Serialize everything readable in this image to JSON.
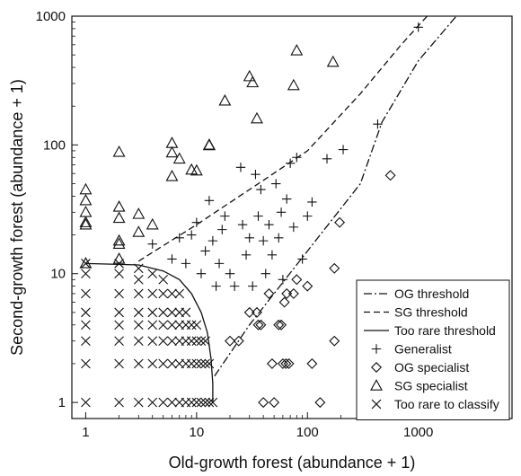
{
  "chart_data": {
    "type": "scatter",
    "xlabel": "Old-growth forest (abundance + 1)",
    "ylabel": "Second-growth forest (abundance + 1)",
    "xscale": "log",
    "yscale": "log",
    "xlim": [
      0.75,
      7000
    ],
    "ylim": [
      0.75,
      1000
    ],
    "xticks": [
      1,
      10,
      100,
      1000
    ],
    "xtick_labels": [
      "1",
      "10",
      "100",
      "1000"
    ],
    "yticks": [
      1,
      10,
      100,
      1000
    ],
    "ytick_labels": [
      "1",
      "10",
      "100",
      "1000"
    ],
    "grid": false,
    "legend_position": "bottom-right",
    "legend": [
      {
        "label": "OG threshold",
        "kind": "line",
        "style": "dash-dot"
      },
      {
        "label": "SG threshold",
        "kind": "line",
        "style": "dashed"
      },
      {
        "label": "Too rare threshold",
        "kind": "line",
        "style": "solid"
      },
      {
        "label": "Generalist",
        "kind": "marker",
        "marker": "plus"
      },
      {
        "label": "OG specialist",
        "kind": "marker",
        "marker": "diamond"
      },
      {
        "label": "SG specialist",
        "kind": "marker",
        "marker": "triangle"
      },
      {
        "label": "Too rare to classify",
        "kind": "marker",
        "marker": "cross"
      }
    ],
    "lines": [
      {
        "name": "OG threshold",
        "style": "dash-dot",
        "points": [
          [
            14.5,
            1.6
          ],
          [
            30,
            4
          ],
          [
            100,
            15
          ],
          [
            300,
            50
          ],
          [
            470,
            150
          ],
          [
            1000,
            450
          ],
          [
            2200,
            1000
          ]
        ]
      },
      {
        "name": "SG threshold",
        "style": "dashed",
        "points": [
          [
            3,
            12.5
          ],
          [
            10,
            24
          ],
          [
            30,
            45
          ],
          [
            100,
            90
          ],
          [
            300,
            250
          ],
          [
            700,
            600
          ],
          [
            1200,
            1000
          ]
        ]
      },
      {
        "name": "Too rare threshold",
        "style": "solid",
        "points": [
          [
            1,
            12
          ],
          [
            3,
            11.7
          ],
          [
            5,
            10.5
          ],
          [
            7,
            9
          ],
          [
            9,
            7
          ],
          [
            11,
            5
          ],
          [
            12.5,
            3.5
          ],
          [
            13.5,
            2.2
          ],
          [
            14,
            1.4
          ],
          [
            14,
            1
          ]
        ]
      }
    ],
    "series": [
      {
        "name": "SG specialist",
        "marker": "triangle",
        "points": [
          [
            1,
            45
          ],
          [
            1,
            37
          ],
          [
            1,
            30
          ],
          [
            1,
            25
          ],
          [
            1,
            24
          ],
          [
            1,
            12
          ],
          [
            2,
            88
          ],
          [
            2,
            33
          ],
          [
            2,
            27
          ],
          [
            2,
            18
          ],
          [
            2,
            17
          ],
          [
            2,
            13
          ],
          [
            3,
            29
          ],
          [
            3,
            21
          ],
          [
            4,
            24
          ],
          [
            6,
            103
          ],
          [
            6,
            87
          ],
          [
            6,
            57
          ],
          [
            7,
            78
          ],
          [
            9,
            64
          ],
          [
            10,
            63
          ],
          [
            13,
            100
          ],
          [
            13,
            99
          ],
          [
            18,
            220
          ],
          [
            30,
            340
          ],
          [
            32,
            305
          ],
          [
            35,
            160
          ],
          [
            75,
            290
          ],
          [
            80,
            540
          ],
          [
            170,
            440
          ]
        ]
      },
      {
        "name": "Generalist",
        "marker": "plus",
        "points": [
          [
            4,
            17
          ],
          [
            6,
            13
          ],
          [
            7,
            19
          ],
          [
            8,
            12
          ],
          [
            9,
            20
          ],
          [
            10,
            25
          ],
          [
            11,
            10
          ],
          [
            12,
            15
          ],
          [
            13,
            37
          ],
          [
            14,
            18
          ],
          [
            15,
            8
          ],
          [
            16,
            12
          ],
          [
            17,
            22
          ],
          [
            18,
            28
          ],
          [
            20,
            10
          ],
          [
            22,
            8
          ],
          [
            25,
            67
          ],
          [
            26,
            24
          ],
          [
            28,
            14
          ],
          [
            30,
            19
          ],
          [
            32,
            8
          ],
          [
            34,
            59
          ],
          [
            36,
            28
          ],
          [
            38,
            45
          ],
          [
            40,
            18
          ],
          [
            42,
            10
          ],
          [
            45,
            24
          ],
          [
            48,
            14
          ],
          [
            52,
            50
          ],
          [
            55,
            19
          ],
          [
            58,
            30
          ],
          [
            60,
            9
          ],
          [
            65,
            38
          ],
          [
            70,
            72
          ],
          [
            75,
            23
          ],
          [
            80,
            80
          ],
          [
            90,
            13
          ],
          [
            100,
            28
          ],
          [
            110,
            36
          ],
          [
            150,
            78
          ],
          [
            210,
            92
          ],
          [
            430,
            145
          ],
          [
            1000,
            820
          ]
        ]
      },
      {
        "name": "OG specialist",
        "marker": "diamond",
        "points": [
          [
            20,
            3
          ],
          [
            24,
            3
          ],
          [
            30,
            5
          ],
          [
            35,
            5
          ],
          [
            36,
            4
          ],
          [
            38,
            4
          ],
          [
            40,
            1
          ],
          [
            45,
            7
          ],
          [
            48,
            2
          ],
          [
            50,
            1
          ],
          [
            55,
            4
          ],
          [
            58,
            4
          ],
          [
            60,
            2
          ],
          [
            62,
            6
          ],
          [
            64,
            2
          ],
          [
            65,
            7
          ],
          [
            68,
            2
          ],
          [
            75,
            7
          ],
          [
            80,
            9
          ],
          [
            100,
            8
          ],
          [
            110,
            2
          ],
          [
            130,
            1
          ],
          [
            175,
            3
          ],
          [
            175,
            11
          ],
          [
            195,
            25
          ],
          [
            560,
            58
          ]
        ]
      },
      {
        "name": "Too rare to classify",
        "marker": "cross",
        "points": [
          [
            1,
            12
          ],
          [
            1,
            10
          ],
          [
            1,
            7
          ],
          [
            1,
            5
          ],
          [
            1,
            4
          ],
          [
            1,
            3
          ],
          [
            1,
            2
          ],
          [
            1,
            1
          ],
          [
            2,
            12
          ],
          [
            2,
            10
          ],
          [
            2,
            7
          ],
          [
            2,
            5
          ],
          [
            2,
            4
          ],
          [
            2,
            3
          ],
          [
            2,
            2
          ],
          [
            2,
            1
          ],
          [
            3,
            11
          ],
          [
            3,
            9
          ],
          [
            3,
            7
          ],
          [
            3,
            5
          ],
          [
            3,
            4
          ],
          [
            3,
            3
          ],
          [
            3,
            2
          ],
          [
            3,
            1
          ],
          [
            4,
            10
          ],
          [
            4,
            7
          ],
          [
            4,
            5
          ],
          [
            4,
            4
          ],
          [
            4,
            3
          ],
          [
            4,
            2
          ],
          [
            4,
            1
          ],
          [
            5,
            9
          ],
          [
            5,
            7
          ],
          [
            5,
            5
          ],
          [
            5,
            4
          ],
          [
            5,
            3
          ],
          [
            5,
            2
          ],
          [
            5,
            1
          ],
          [
            6,
            7
          ],
          [
            6,
            5
          ],
          [
            6,
            4
          ],
          [
            6,
            3
          ],
          [
            6,
            2
          ],
          [
            6,
            1
          ],
          [
            7,
            7
          ],
          [
            7,
            5
          ],
          [
            7,
            4
          ],
          [
            7,
            3
          ],
          [
            7,
            2
          ],
          [
            7,
            1
          ],
          [
            8,
            5
          ],
          [
            8,
            4
          ],
          [
            8,
            3
          ],
          [
            8,
            2
          ],
          [
            8,
            1
          ],
          [
            9,
            4
          ],
          [
            9,
            3
          ],
          [
            9,
            2
          ],
          [
            9,
            1
          ],
          [
            10,
            4
          ],
          [
            10,
            3
          ],
          [
            10,
            2
          ],
          [
            10,
            1
          ],
          [
            11,
            3
          ],
          [
            11,
            2
          ],
          [
            11,
            1
          ],
          [
            12,
            3
          ],
          [
            12,
            2
          ],
          [
            12,
            1
          ],
          [
            13,
            2
          ],
          [
            13,
            1
          ],
          [
            14,
            1
          ]
        ]
      }
    ]
  }
}
